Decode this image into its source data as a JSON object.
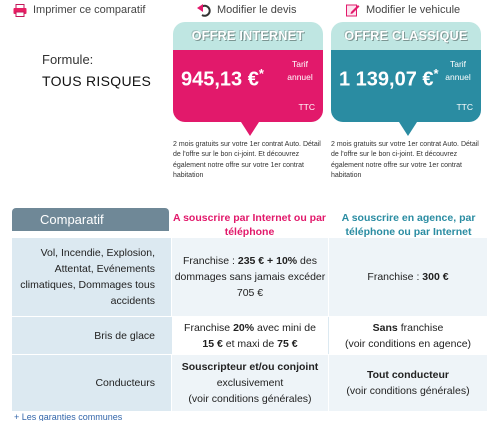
{
  "toolbar": {
    "print_label": "Imprimer ce comparatif",
    "devis_label": "Modifier le devis",
    "vehicule_label": "Modifier le vehicule"
  },
  "formule": {
    "label": "Formule:",
    "value": "TOUS RISQUES"
  },
  "offers": {
    "internet": {
      "title": "OFFRE INTERNET",
      "price": "945,13 €",
      "asterisk": "*",
      "tarif": "Tarif annuel",
      "ttc": "TTC",
      "promo": "2 mois gratuits sur votre 1er contrat Auto. Détail de l'offre sur le bon ci-joint. Et découvrez également notre offre sur votre 1er contrat habitation",
      "color": "#e2196b"
    },
    "classique": {
      "title": "OFFRE CLASSIQUE",
      "price": "1 139,07 €",
      "asterisk": "*",
      "tarif": "Tarif annuel",
      "ttc": "TTC",
      "promo": "2 mois gratuits sur votre 1er contrat Auto. Détail de l'offre sur le bon ci-joint. Et découvrez également notre offre sur votre 1er contrat habitation",
      "color": "#2a8ca2"
    }
  },
  "comparatif": {
    "header": "Comparatif",
    "col_internet": "A souscrire par Internet ou par téléphone",
    "col_agence": "A souscrire en agence, par téléphone ou par Internet",
    "rows": {
      "vol": {
        "label": "Vol, Incendie, Explosion, Attentat, Evénements climatiques, Dommages tous accidents",
        "internet": {
          "pre": "Franchise : ",
          "b1": "235 € + 10%",
          "mid": " des dommages sans jamais excéder 705 €"
        },
        "agence": {
          "pre": "Franchise : ",
          "b1": "300 €"
        }
      },
      "bris": {
        "label": "Bris de glace",
        "internet": {
          "pre": "Franchise ",
          "b1": "20%",
          "mid": " avec mini de ",
          "b2": "15 €",
          "mid2": " et maxi de ",
          "b3": "75 €"
        },
        "agence": {
          "b1": "Sans",
          "mid": " franchise",
          "post": "(voir conditions en agence)"
        }
      },
      "cond": {
        "label": "Conducteurs",
        "internet": {
          "b1": "Souscripteur et/ou conjoint",
          "mid": "exclusivement",
          "post": "(voir conditions générales)"
        },
        "agence": {
          "b1": "Tout conducteur",
          "post": "(voir conditions générales)"
        }
      }
    }
  },
  "garanties_link": "+ Les garanties communes"
}
